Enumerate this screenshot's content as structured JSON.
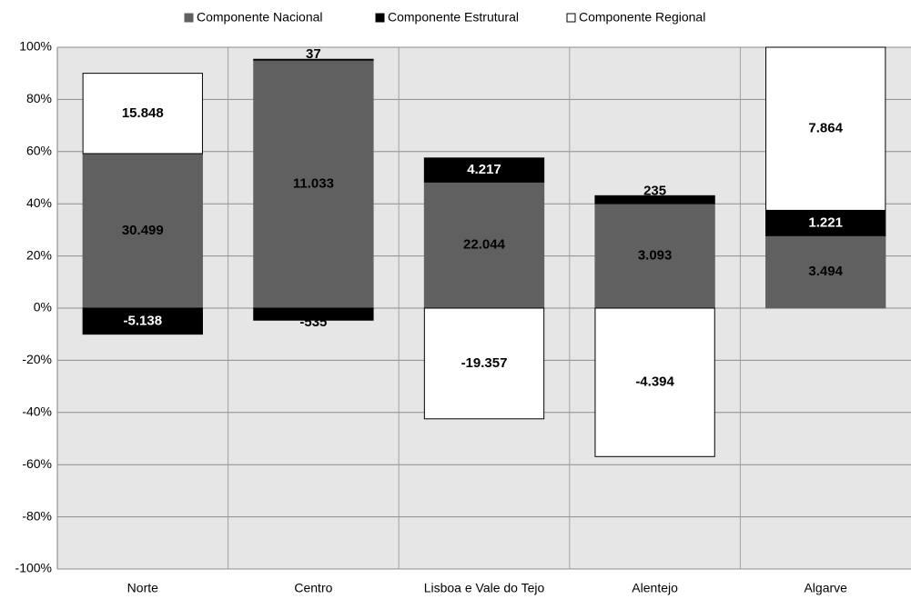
{
  "chart_data": {
    "type": "stacked_bar",
    "categories": [
      "Norte",
      "Centro",
      "Lisboa e Vale do Tejo",
      "Alentejo",
      "Algarve"
    ],
    "series": [
      {
        "name": "Componente Nacional",
        "color": "#606060",
        "values": [
          59.24,
          95.07,
          48.32,
          40.05,
          27.78
        ],
        "value_labels": [
          "30.499",
          "11.033",
          "22.044",
          "3.093",
          "3.494"
        ]
      },
      {
        "name": "Componente Estrutural",
        "color": "#000000",
        "values": [
          -9.98,
          -4.61,
          9.24,
          3.04,
          9.71
        ],
        "value_labels": [
          "-5.138",
          "-535",
          "4.217",
          "235",
          "1.221"
        ]
      },
      {
        "name": "Componente Regional",
        "color": "#ffffff",
        "values": [
          30.78,
          0.32,
          -42.43,
          -56.9,
          62.52
        ],
        "value_labels": [
          "15.848",
          "37",
          "-19.357",
          "-4.394",
          "7.864"
        ]
      }
    ],
    "ylim": [
      -100,
      100
    ],
    "yticks": [
      {
        "value": -100,
        "label": "-100%"
      },
      {
        "value": -80,
        "label": "-80%"
      },
      {
        "value": -60,
        "label": "-60%"
      },
      {
        "value": -40,
        "label": "-40%"
      },
      {
        "value": -20,
        "label": "-20%"
      },
      {
        "value": 0,
        "label": "0%"
      },
      {
        "value": 20,
        "label": "20%"
      },
      {
        "value": 40,
        "label": "40%"
      },
      {
        "value": 60,
        "label": "60%"
      },
      {
        "value": 80,
        "label": "80%"
      },
      {
        "value": 100,
        "label": "100%"
      }
    ],
    "grid": true
  }
}
